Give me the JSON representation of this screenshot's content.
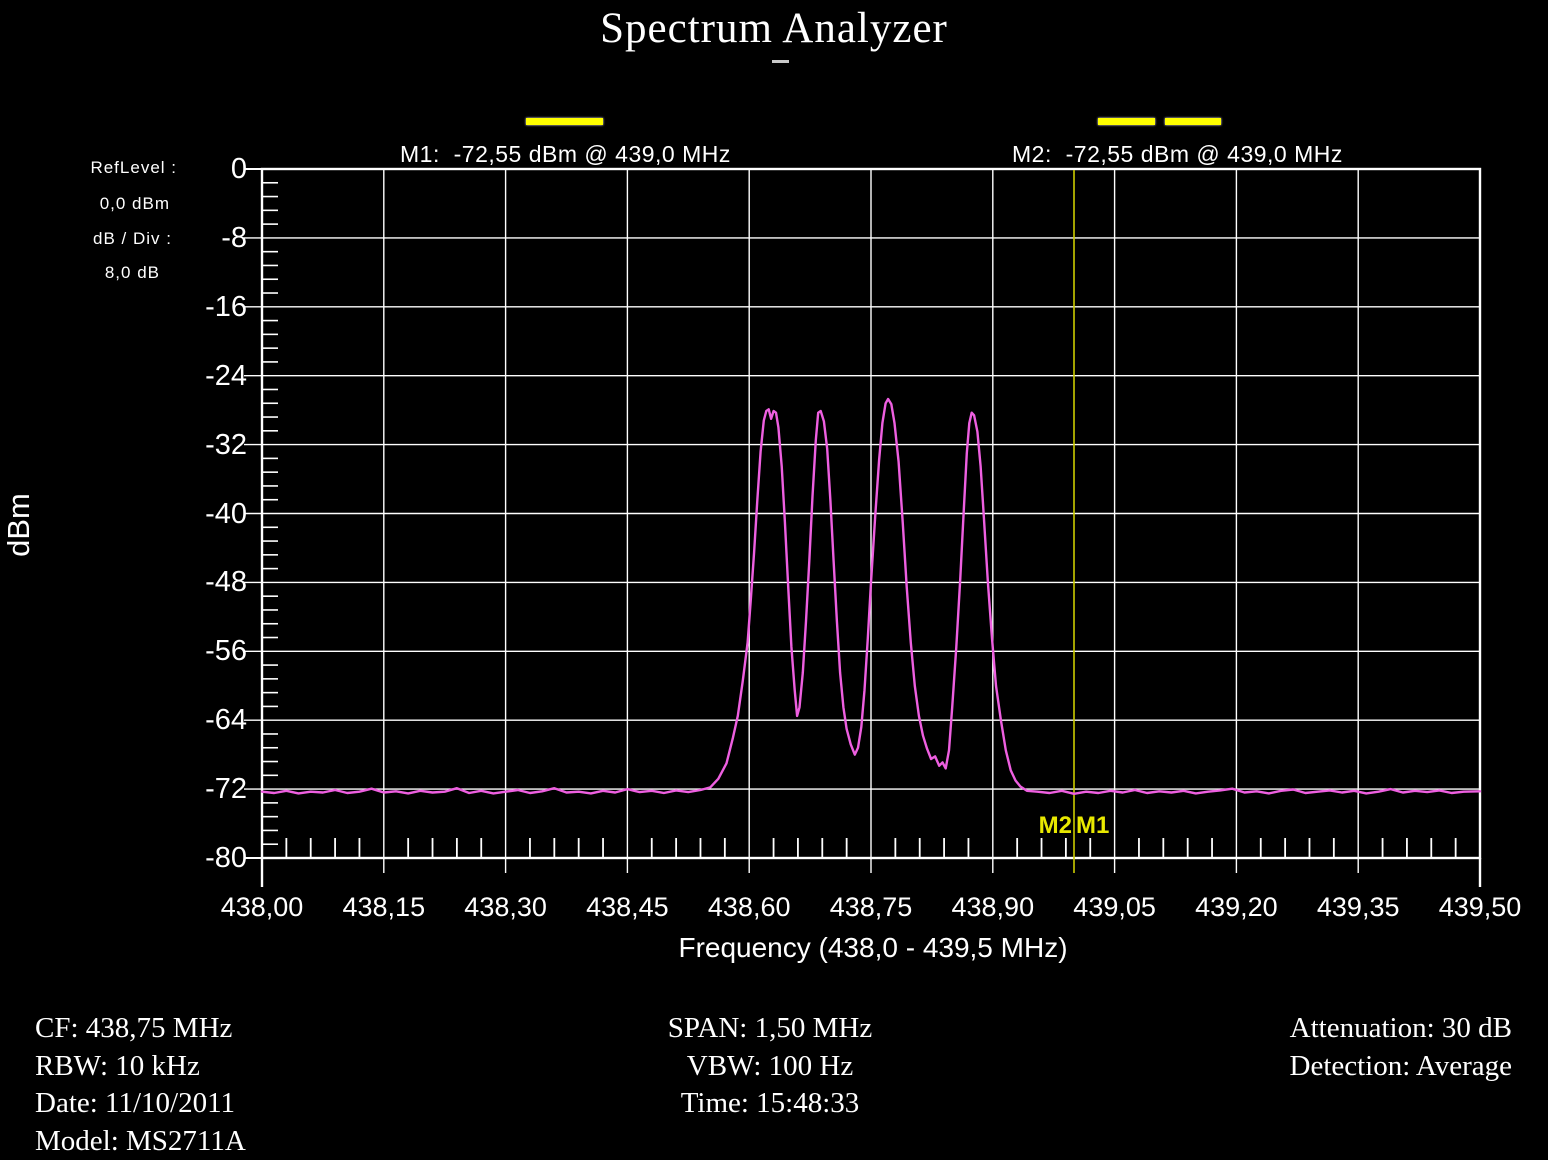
{
  "header": {
    "title": "Spectrum Analyzer",
    "marker1_readout": "M1:  -72,55 dBm @ 439,0 MHz",
    "marker2_readout": "M2:  -72,55 dBm @ 439,0 MHz"
  },
  "left_panel": {
    "ref_level_label": "RefLevel :",
    "ref_level_value": "0,0  dBm",
    "db_div_label": "dB / Div :",
    "db_div_value": "8,0 dB"
  },
  "chart_data": {
    "type": "line",
    "title": "Spectrum Analyzer",
    "xlabel": "Frequency (438,0 - 439,5 MHz)",
    "ylabel": "dBm",
    "x_range": [
      438.0,
      439.5
    ],
    "y_range": [
      -80,
      0
    ],
    "db_per_div": 8,
    "x_ticks": [
      438.0,
      438.15,
      438.3,
      438.45,
      438.6,
      438.75,
      438.9,
      439.05,
      439.2,
      439.35,
      439.5
    ],
    "x_tick_labels": [
      "438,00",
      "438,15",
      "438,30",
      "438,45",
      "438,60",
      "438,75",
      "438,90",
      "439,05",
      "439,20",
      "439,35",
      "439,50"
    ],
    "y_ticks": [
      0,
      -8,
      -16,
      -24,
      -32,
      -40,
      -48,
      -56,
      -64,
      -72,
      -80
    ],
    "y_tick_labels": [
      "0",
      "-8",
      "-16",
      "-24",
      "-32",
      "-40",
      "-48",
      "-56",
      "-64",
      "-72",
      "-80"
    ],
    "minor_per_div": 5,
    "grid": true,
    "colors": {
      "background": "#000000",
      "grid": "#ffffff",
      "text": "#ffffff",
      "trace": "#ee5fe0",
      "marker_line": "#cccc00",
      "marker_label": "#e8e800",
      "marker_dash": "#ffff00"
    },
    "markers": [
      {
        "name": "M1",
        "freq_mhz": 439.0,
        "amplitude_dbm": -72.55
      },
      {
        "name": "M2",
        "freq_mhz": 439.0,
        "amplitude_dbm": -72.55
      }
    ],
    "marker_labels_bottom": [
      "M2",
      "M1"
    ],
    "series": [
      {
        "name": "trace",
        "points": [
          [
            438.0,
            -72.3
          ],
          [
            438.015,
            -72.45
          ],
          [
            438.03,
            -72.2
          ],
          [
            438.045,
            -72.5
          ],
          [
            438.06,
            -72.3
          ],
          [
            438.075,
            -72.4
          ],
          [
            438.09,
            -72.1
          ],
          [
            438.105,
            -72.45
          ],
          [
            438.12,
            -72.3
          ],
          [
            438.135,
            -71.95
          ],
          [
            438.15,
            -72.4
          ],
          [
            438.165,
            -72.25
          ],
          [
            438.18,
            -72.5
          ],
          [
            438.195,
            -72.2
          ],
          [
            438.21,
            -72.4
          ],
          [
            438.225,
            -72.3
          ],
          [
            438.24,
            -71.9
          ],
          [
            438.255,
            -72.45
          ],
          [
            438.27,
            -72.2
          ],
          [
            438.285,
            -72.5
          ],
          [
            438.3,
            -72.3
          ],
          [
            438.315,
            -72.1
          ],
          [
            438.33,
            -72.45
          ],
          [
            438.345,
            -72.25
          ],
          [
            438.36,
            -71.9
          ],
          [
            438.375,
            -72.4
          ],
          [
            438.39,
            -72.3
          ],
          [
            438.405,
            -72.5
          ],
          [
            438.42,
            -72.2
          ],
          [
            438.435,
            -72.4
          ],
          [
            438.45,
            -72.0
          ],
          [
            438.465,
            -72.35
          ],
          [
            438.48,
            -72.2
          ],
          [
            438.495,
            -72.45
          ],
          [
            438.51,
            -72.15
          ],
          [
            438.525,
            -72.35
          ],
          [
            438.54,
            -72.1
          ],
          [
            438.552,
            -71.8
          ],
          [
            438.562,
            -70.8
          ],
          [
            438.572,
            -69.0
          ],
          [
            438.58,
            -66.0
          ],
          [
            438.586,
            -63.5
          ],
          [
            438.592,
            -59.5
          ],
          [
            438.598,
            -55.0
          ],
          [
            438.602,
            -50.0
          ],
          [
            438.606,
            -44.5
          ],
          [
            438.61,
            -38.5
          ],
          [
            438.614,
            -32.8
          ],
          [
            438.618,
            -29.2
          ],
          [
            438.621,
            -28.1
          ],
          [
            438.624,
            -27.9
          ],
          [
            438.627,
            -29.0
          ],
          [
            438.63,
            -28.1
          ],
          [
            438.633,
            -28.3
          ],
          [
            438.636,
            -30.0
          ],
          [
            438.64,
            -34.5
          ],
          [
            438.644,
            -41.0
          ],
          [
            438.648,
            -48.5
          ],
          [
            438.652,
            -55.5
          ],
          [
            438.656,
            -60.5
          ],
          [
            438.659,
            -63.5
          ],
          [
            438.662,
            -62.5
          ],
          [
            438.666,
            -58.5
          ],
          [
            438.67,
            -52.5
          ],
          [
            438.674,
            -45.5
          ],
          [
            438.678,
            -38.0
          ],
          [
            438.682,
            -31.5
          ],
          [
            438.685,
            -28.3
          ],
          [
            438.688,
            -28.1
          ],
          [
            438.692,
            -29.3
          ],
          [
            438.696,
            -32.5
          ],
          [
            438.7,
            -38.5
          ],
          [
            438.704,
            -45.5
          ],
          [
            438.708,
            -52.5
          ],
          [
            438.712,
            -58.5
          ],
          [
            438.716,
            -62.5
          ],
          [
            438.72,
            -65.0
          ],
          [
            438.725,
            -66.8
          ],
          [
            438.73,
            -68.0
          ],
          [
            438.734,
            -67.2
          ],
          [
            438.738,
            -64.8
          ],
          [
            438.742,
            -60.5
          ],
          [
            438.746,
            -54.5
          ],
          [
            438.75,
            -48.0
          ],
          [
            438.755,
            -40.5
          ],
          [
            438.76,
            -33.8
          ],
          [
            438.764,
            -29.5
          ],
          [
            438.768,
            -27.2
          ],
          [
            438.771,
            -26.7
          ],
          [
            438.775,
            -27.3
          ],
          [
            438.779,
            -29.5
          ],
          [
            438.784,
            -34.0
          ],
          [
            438.789,
            -41.0
          ],
          [
            438.794,
            -48.5
          ],
          [
            438.799,
            -55.0
          ],
          [
            438.804,
            -60.0
          ],
          [
            438.809,
            -63.5
          ],
          [
            438.814,
            -65.8
          ],
          [
            438.819,
            -67.3
          ],
          [
            438.824,
            -68.5
          ],
          [
            438.829,
            -68.2
          ],
          [
            438.834,
            -69.3
          ],
          [
            438.838,
            -68.9
          ],
          [
            438.842,
            -69.6
          ],
          [
            438.846,
            -67.5
          ],
          [
            438.85,
            -62.5
          ],
          [
            438.855,
            -55.5
          ],
          [
            438.86,
            -47.5
          ],
          [
            438.864,
            -40.0
          ],
          [
            438.868,
            -33.0
          ],
          [
            438.871,
            -29.5
          ],
          [
            438.874,
            -28.3
          ],
          [
            438.877,
            -28.6
          ],
          [
            438.881,
            -30.5
          ],
          [
            438.885,
            -34.5
          ],
          [
            438.889,
            -40.5
          ],
          [
            438.894,
            -48.0
          ],
          [
            438.899,
            -54.5
          ],
          [
            438.904,
            -60.0
          ],
          [
            438.91,
            -64.0
          ],
          [
            438.916,
            -67.5
          ],
          [
            438.922,
            -69.8
          ],
          [
            438.928,
            -71.0
          ],
          [
            438.934,
            -71.7
          ],
          [
            438.942,
            -72.2
          ],
          [
            438.955,
            -72.3
          ],
          [
            438.97,
            -72.45
          ],
          [
            438.985,
            -72.2
          ],
          [
            439.0,
            -72.55
          ],
          [
            439.015,
            -72.3
          ],
          [
            439.03,
            -72.45
          ],
          [
            439.045,
            -72.2
          ],
          [
            439.06,
            -72.4
          ],
          [
            439.075,
            -72.1
          ],
          [
            439.09,
            -72.45
          ],
          [
            439.105,
            -72.25
          ],
          [
            439.12,
            -72.4
          ],
          [
            439.135,
            -72.2
          ],
          [
            439.15,
            -72.5
          ],
          [
            439.165,
            -72.3
          ],
          [
            439.18,
            -72.15
          ],
          [
            439.195,
            -71.95
          ],
          [
            439.21,
            -72.4
          ],
          [
            439.225,
            -72.25
          ],
          [
            439.24,
            -72.5
          ],
          [
            439.255,
            -72.2
          ],
          [
            439.27,
            -72.05
          ],
          [
            439.285,
            -72.45
          ],
          [
            439.3,
            -72.3
          ],
          [
            439.315,
            -72.15
          ],
          [
            439.33,
            -72.4
          ],
          [
            439.345,
            -72.2
          ],
          [
            439.36,
            -72.5
          ],
          [
            439.375,
            -72.3
          ],
          [
            439.39,
            -72.0
          ],
          [
            439.405,
            -72.4
          ],
          [
            439.42,
            -72.2
          ],
          [
            439.435,
            -72.35
          ],
          [
            439.45,
            -72.15
          ],
          [
            439.465,
            -72.45
          ],
          [
            439.48,
            -72.3
          ],
          [
            439.5,
            -72.25
          ]
        ]
      }
    ]
  },
  "footer": {
    "left": [
      "CF: 438,75 MHz",
      "RBW: 10 kHz",
      "Date: 11/10/2011",
      "Model: MS2711A"
    ],
    "center": [
      "SPAN: 1,50 MHz",
      "VBW: 100 Hz",
      "Time: 15:48:33"
    ],
    "right": [
      "Attenuation: 30 dB",
      "Detection: Average"
    ]
  }
}
